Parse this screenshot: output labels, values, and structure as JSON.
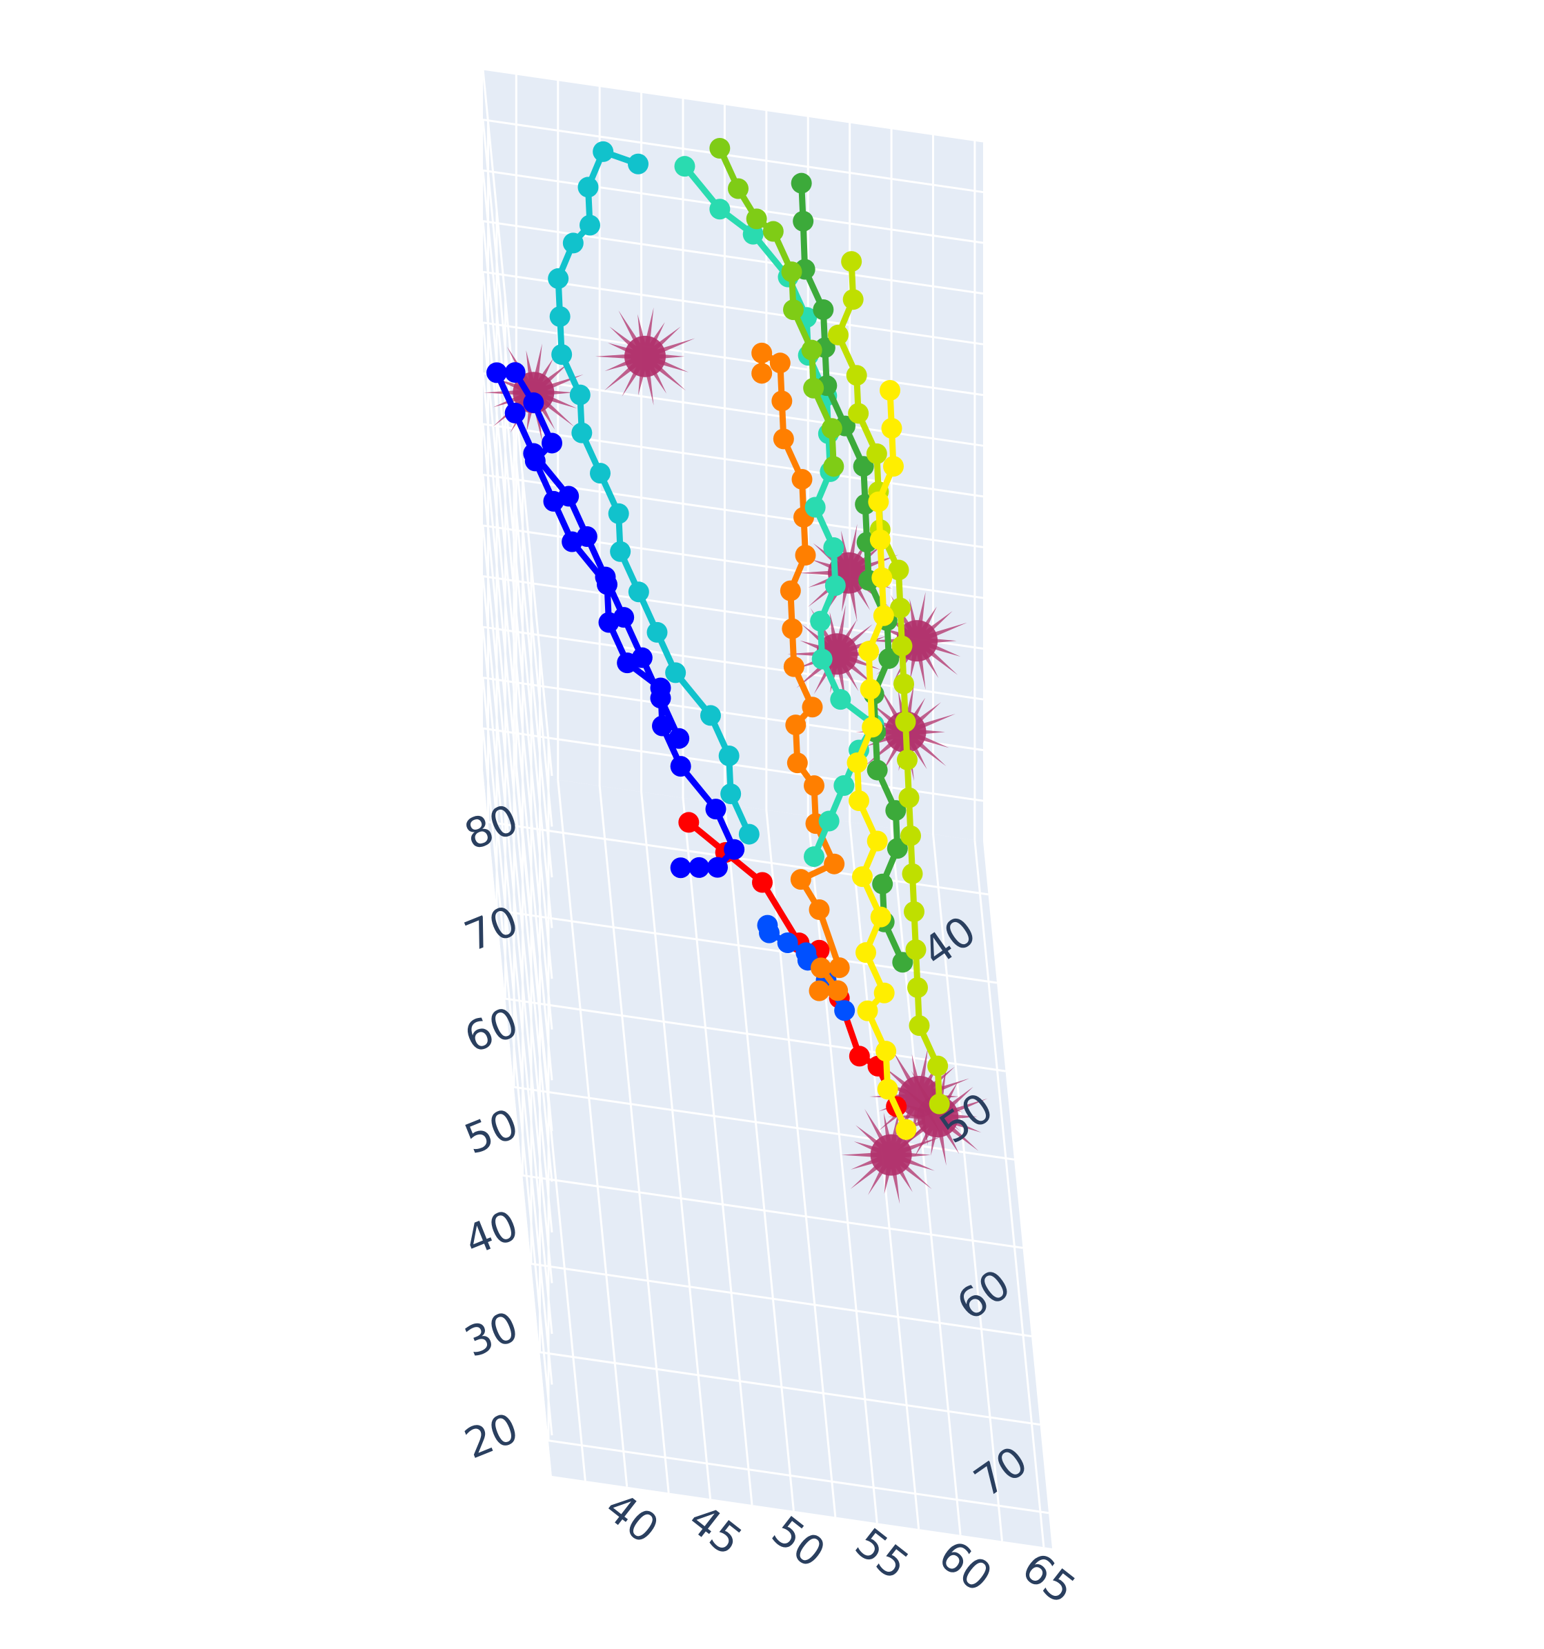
{
  "chart_data": {
    "type": "3d-scatter-line",
    "title": "",
    "axes": {
      "x": {
        "label": "",
        "range": [
          37,
          77
        ],
        "ticks": [
          40,
          50,
          60,
          70
        ]
      },
      "y": {
        "label": "",
        "range": [
          38,
          68
        ],
        "ticks": [
          40,
          45,
          50,
          55,
          60,
          65
        ]
      },
      "z": {
        "label": "",
        "range": [
          16,
          85
        ],
        "ticks": [
          20,
          30,
          40,
          50,
          60,
          70,
          80
        ]
      }
    },
    "grid": true,
    "legend": "none",
    "style": {
      "scene_bg": "#e5ecf6",
      "grid_color": "#ffffff",
      "glyph_color": "#b0306a"
    },
    "series": [
      {
        "color": "#ff0000",
        "points": [
          [
            50,
            49,
            36
          ],
          [
            52,
            51,
            37
          ],
          [
            54,
            53,
            38
          ],
          [
            56,
            55,
            36
          ],
          [
            58,
            56,
            39
          ],
          [
            60,
            57,
            38
          ],
          [
            62,
            58,
            36
          ],
          [
            63,
            59,
            37
          ],
          [
            64,
            60,
            35
          ]
        ]
      },
      {
        "color": "#0050ff",
        "points": [
          [
            57,
            53,
            39
          ],
          [
            58,
            53,
            40
          ],
          [
            59,
            54,
            41
          ],
          [
            60,
            55,
            42
          ],
          [
            61,
            55,
            43
          ],
          [
            62,
            56,
            43
          ],
          [
            63,
            57,
            42
          ]
        ]
      },
      {
        "color": "#0000ff",
        "points": [
          [
            55,
            48,
            40
          ],
          [
            56,
            49,
            42
          ],
          [
            57,
            50,
            44
          ],
          [
            57,
            51,
            46
          ],
          [
            56,
            50,
            48
          ],
          [
            55,
            48,
            50
          ],
          [
            54,
            47,
            52
          ],
          [
            53,
            47,
            54
          ],
          [
            53,
            45,
            56
          ],
          [
            52,
            44,
            58
          ],
          [
            51,
            44,
            60
          ],
          [
            50,
            42,
            62
          ],
          [
            49,
            41,
            64
          ],
          [
            48,
            40,
            66
          ],
          [
            48,
            41,
            68
          ],
          [
            47,
            40,
            70
          ],
          [
            46,
            39,
            71
          ],
          [
            45,
            38,
            69
          ],
          [
            46,
            39,
            67
          ],
          [
            47,
            40,
            65
          ],
          [
            48,
            42,
            63
          ],
          [
            49,
            43,
            61
          ],
          [
            50,
            44,
            59
          ],
          [
            51,
            45,
            57
          ],
          [
            52,
            46,
            55
          ],
          [
            53,
            47,
            53
          ],
          [
            54,
            48,
            51
          ]
        ]
      },
      {
        "color": "#ff7f00",
        "points": [
          [
            58,
            56,
            35
          ],
          [
            59,
            57,
            37
          ],
          [
            59,
            56,
            39
          ],
          [
            60,
            57,
            41
          ],
          [
            58,
            56,
            43
          ],
          [
            57,
            55,
            44
          ],
          [
            57,
            57,
            46
          ],
          [
            56,
            56,
            48
          ],
          [
            55,
            56,
            50
          ],
          [
            55,
            55,
            52
          ],
          [
            54,
            55,
            54
          ],
          [
            54,
            56,
            56
          ],
          [
            53,
            55,
            58
          ],
          [
            52,
            55,
            60
          ],
          [
            51,
            55,
            62
          ],
          [
            50,
            56,
            64
          ],
          [
            49,
            56,
            66
          ],
          [
            48,
            56,
            68
          ],
          [
            47,
            55,
            70
          ],
          [
            46,
            55,
            72
          ],
          [
            45,
            55,
            74
          ],
          [
            44,
            54,
            73
          ],
          [
            44,
            54,
            71
          ]
        ]
      },
      {
        "color": "#11c2cc",
        "points": [
          [
            56,
            52,
            46
          ],
          [
            55,
            51,
            48
          ],
          [
            54,
            51,
            50
          ],
          [
            53,
            50,
            52
          ],
          [
            52,
            48,
            54
          ],
          [
            51,
            47,
            56
          ],
          [
            50,
            46,
            58
          ],
          [
            49,
            45,
            60
          ],
          [
            48,
            45,
            62
          ],
          [
            47,
            44,
            64
          ],
          [
            46,
            43,
            66
          ],
          [
            45,
            43,
            68
          ],
          [
            44,
            42,
            70
          ],
          [
            43,
            42,
            72
          ],
          [
            42,
            42,
            74
          ],
          [
            41,
            43,
            76
          ],
          [
            41,
            44,
            78
          ],
          [
            40,
            44,
            80
          ],
          [
            39,
            45,
            82
          ],
          [
            40,
            47,
            83
          ]
        ]
      },
      {
        "color": "#2adbb0",
        "points": [
          [
            55,
            56,
            43
          ],
          [
            54,
            57,
            45
          ],
          [
            53,
            58,
            47
          ],
          [
            52,
            59,
            49
          ],
          [
            51,
            60,
            50
          ],
          [
            51,
            58,
            52
          ],
          [
            50,
            57,
            54
          ],
          [
            49,
            57,
            56
          ],
          [
            48,
            58,
            58
          ],
          [
            47,
            58,
            60
          ],
          [
            46,
            57,
            62
          ],
          [
            45,
            58,
            64
          ],
          [
            44,
            58,
            66
          ],
          [
            43,
            58,
            68
          ],
          [
            42,
            57,
            70
          ],
          [
            41,
            57,
            72
          ],
          [
            40,
            56,
            74
          ],
          [
            39,
            54,
            76
          ],
          [
            39,
            52,
            78
          ],
          [
            38,
            50,
            80
          ]
        ]
      },
      {
        "color": "#3caa3a",
        "points": [
          [
            58,
            61,
            39
          ],
          [
            57,
            60,
            41
          ],
          [
            56,
            60,
            43
          ],
          [
            55,
            61,
            45
          ],
          [
            54,
            61,
            47
          ],
          [
            53,
            60,
            49
          ],
          [
            52,
            60,
            51
          ],
          [
            51,
            60,
            53
          ],
          [
            50,
            61,
            55
          ],
          [
            49,
            61,
            57
          ],
          [
            48,
            60,
            59
          ],
          [
            47,
            60,
            61
          ],
          [
            46,
            60,
            63
          ],
          [
            45,
            60,
            65
          ],
          [
            44,
            59,
            67
          ],
          [
            43,
            58,
            69
          ],
          [
            42,
            58,
            71
          ],
          [
            41,
            58,
            73
          ],
          [
            40,
            57,
            75
          ],
          [
            39,
            57,
            78
          ],
          [
            38,
            57,
            80
          ]
        ]
      },
      {
        "color": "#7fcc16",
        "points": [
          [
            47,
            58,
            68
          ],
          [
            46,
            58,
            70
          ],
          [
            45,
            57,
            72
          ],
          [
            44,
            57,
            74
          ],
          [
            43,
            56,
            76
          ],
          [
            42,
            56,
            78
          ],
          [
            41,
            55,
            80
          ],
          [
            41,
            54,
            81
          ],
          [
            40,
            53,
            82
          ],
          [
            39,
            52,
            84
          ]
        ]
      },
      {
        "color": "#bfdf00",
        "points": [
          [
            60,
            63,
            29
          ],
          [
            59,
            63,
            31
          ],
          [
            58,
            62,
            33
          ],
          [
            57,
            62,
            35
          ],
          [
            56,
            62,
            37
          ],
          [
            55,
            62,
            39
          ],
          [
            54,
            62,
            41
          ],
          [
            53,
            62,
            43
          ],
          [
            52,
            62,
            45
          ],
          [
            51,
            62,
            47
          ],
          [
            50,
            62,
            49
          ],
          [
            49,
            62,
            51
          ],
          [
            48,
            62,
            53
          ],
          [
            47,
            62,
            55
          ],
          [
            46,
            62,
            57
          ],
          [
            45,
            61,
            59
          ],
          [
            44,
            61,
            61
          ],
          [
            43,
            61,
            63
          ],
          [
            42,
            60,
            65
          ],
          [
            41,
            60,
            67
          ],
          [
            40,
            59,
            69
          ],
          [
            39,
            60,
            71
          ],
          [
            38,
            60,
            73
          ]
        ]
      },
      {
        "color": "#ffee00",
        "points": [
          [
            60,
            61,
            26
          ],
          [
            59,
            60,
            28
          ],
          [
            58,
            60,
            30
          ],
          [
            57,
            59,
            32
          ],
          [
            57,
            60,
            34
          ],
          [
            56,
            59,
            36
          ],
          [
            55,
            60,
            38
          ],
          [
            54,
            59,
            40
          ],
          [
            53,
            60,
            42
          ],
          [
            52,
            59,
            44
          ],
          [
            51,
            59,
            46
          ],
          [
            50,
            60,
            48
          ],
          [
            49,
            60,
            50
          ],
          [
            48,
            60,
            52
          ],
          [
            47,
            61,
            54
          ],
          [
            46,
            61,
            56
          ],
          [
            45,
            61,
            58
          ],
          [
            44,
            61,
            60
          ],
          [
            43,
            62,
            62
          ],
          [
            42,
            62,
            64
          ],
          [
            41,
            62,
            66
          ]
        ]
      }
    ],
    "glyph_clusters": [
      [
        47,
        40,
        71
      ],
      [
        44,
        47,
        71
      ],
      [
        49,
        58,
        53
      ],
      [
        46,
        59,
        56
      ],
      [
        47,
        63,
        52
      ],
      [
        50,
        62,
        48
      ],
      [
        58,
        62,
        26
      ],
      [
        59,
        63,
        26
      ],
      [
        61,
        60,
        25
      ]
    ]
  }
}
